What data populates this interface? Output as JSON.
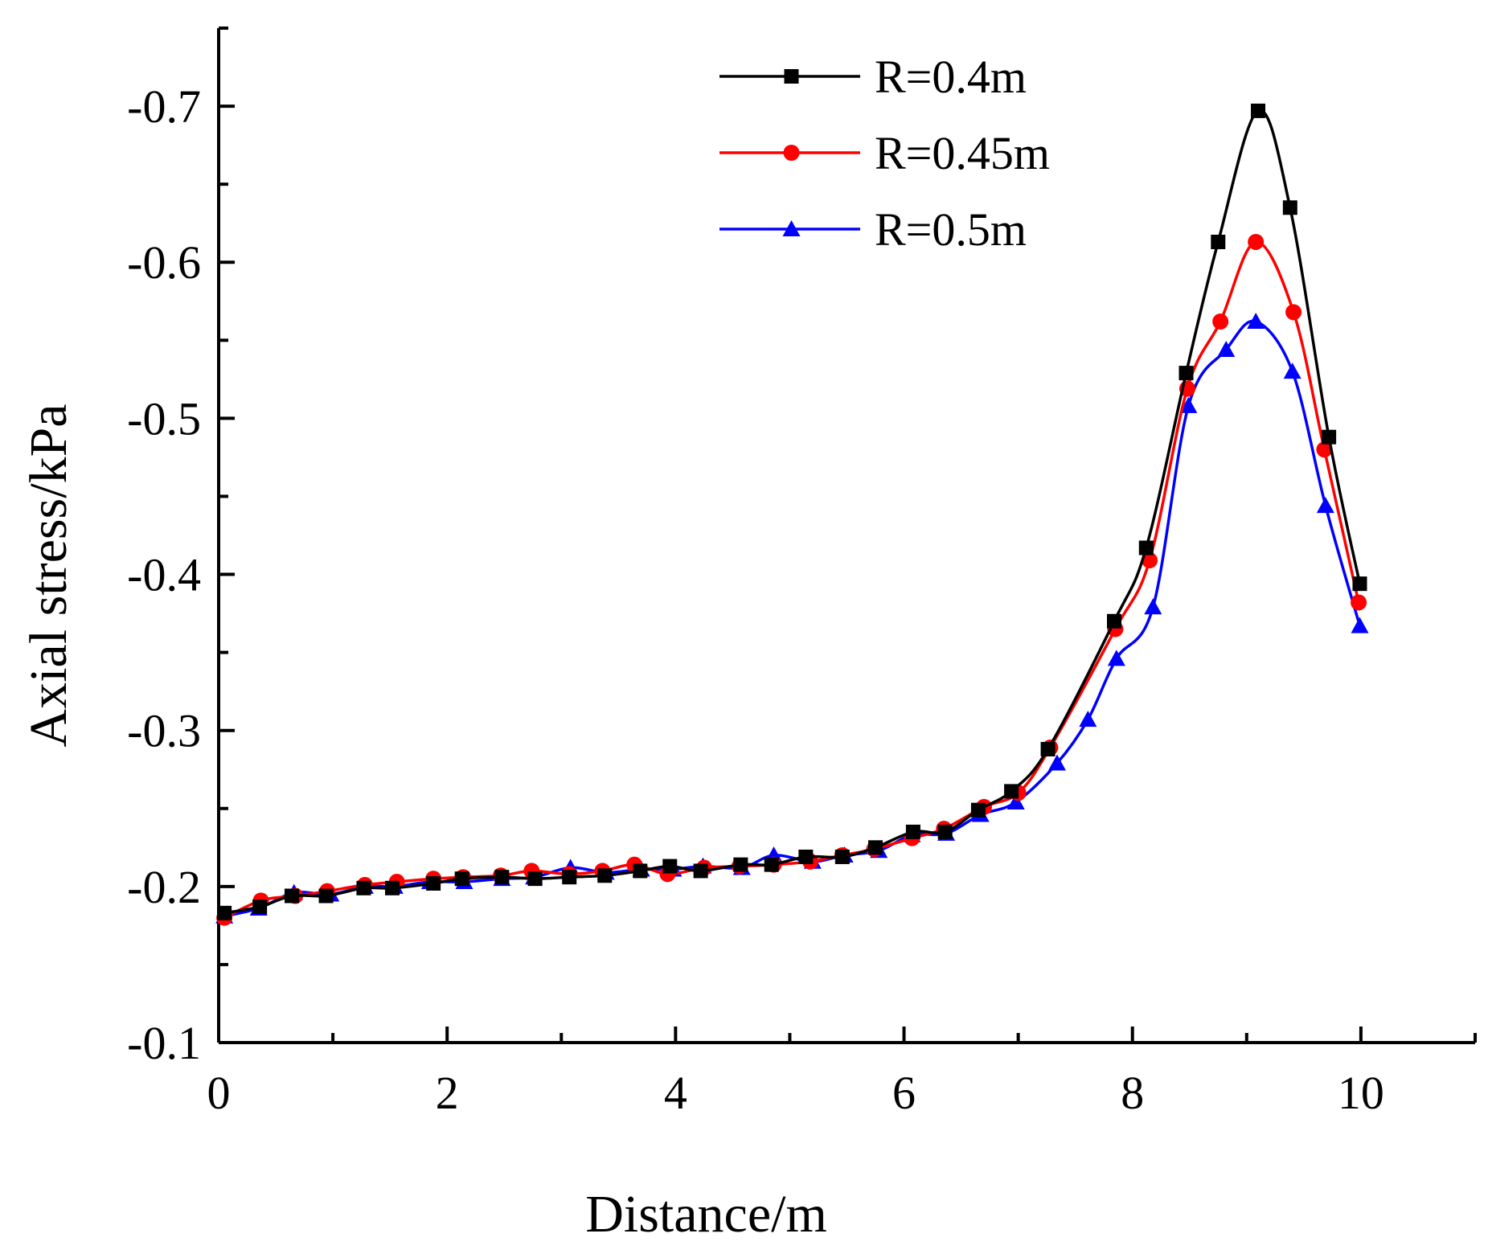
{
  "chart_data": {
    "type": "line",
    "title": "",
    "xlabel": "Distance/m",
    "ylabel": "Axial stress/kPa",
    "xlim": [
      0,
      11
    ],
    "ylim": [
      -0.1,
      -0.75
    ],
    "y_axis_inverted": true,
    "xticks": [
      0,
      2,
      4,
      6,
      8,
      10
    ],
    "xtick_labels": [
      "0",
      "2",
      "4",
      "6",
      "8",
      "10"
    ],
    "yticks": [
      -0.1,
      -0.2,
      -0.3,
      -0.4,
      -0.5,
      -0.6,
      -0.7
    ],
    "ytick_labels": [
      "-0.1",
      "-0.2",
      "-0.3",
      "-0.4",
      "-0.5",
      "-0.6",
      "-0.7"
    ],
    "grid": false,
    "legend_position": "top-center",
    "series": [
      {
        "name": "R=0.4m",
        "color": "#000000",
        "marker": "square",
        "x": [
          0.05,
          0.36,
          0.64,
          0.94,
          1.27,
          1.52,
          1.88,
          2.13,
          2.48,
          2.77,
          3.07,
          3.38,
          3.69,
          3.95,
          4.22,
          4.57,
          4.84,
          5.14,
          5.46,
          5.75,
          6.08,
          6.36,
          6.65,
          6.94,
          7.26,
          7.84,
          8.12,
          8.47,
          8.75,
          9.1,
          9.38,
          9.72,
          9.99
        ],
        "y": [
          -0.183,
          -0.187,
          -0.194,
          -0.194,
          -0.199,
          -0.199,
          -0.202,
          -0.205,
          -0.206,
          -0.205,
          -0.206,
          -0.207,
          -0.21,
          -0.213,
          -0.21,
          -0.214,
          -0.214,
          -0.219,
          -0.219,
          -0.225,
          -0.235,
          -0.235,
          -0.249,
          -0.261,
          -0.288,
          -0.37,
          -0.417,
          -0.529,
          -0.613,
          -0.697,
          -0.635,
          -0.488,
          -0.394
        ]
      },
      {
        "name": "R=0.45m",
        "color": "#ff0000",
        "marker": "circle",
        "x": [
          0.05,
          0.37,
          0.67,
          0.95,
          1.28,
          1.56,
          1.88,
          2.14,
          2.47,
          2.74,
          3.07,
          3.36,
          3.64,
          3.93,
          4.25,
          4.56,
          4.86,
          5.18,
          5.46,
          5.74,
          6.07,
          6.35,
          6.7,
          7.0,
          7.28,
          7.85,
          8.15,
          8.48,
          8.77,
          9.08,
          9.41,
          9.68,
          9.98
        ],
        "y": [
          -0.18,
          -0.191,
          -0.194,
          -0.197,
          -0.201,
          -0.203,
          -0.205,
          -0.206,
          -0.207,
          -0.21,
          -0.208,
          -0.21,
          -0.214,
          -0.208,
          -0.212,
          -0.213,
          -0.214,
          -0.216,
          -0.22,
          -0.224,
          -0.231,
          -0.237,
          -0.251,
          -0.26,
          -0.289,
          -0.365,
          -0.409,
          -0.519,
          -0.562,
          -0.613,
          -0.568,
          -0.48,
          -0.382
        ]
      },
      {
        "name": "R=0.5m",
        "color": "#0000ff",
        "marker": "triangle",
        "x": [
          0.05,
          0.35,
          0.66,
          0.98,
          1.28,
          1.54,
          1.85,
          2.15,
          2.48,
          2.76,
          3.08,
          3.39,
          3.7,
          3.98,
          4.24,
          4.58,
          4.86,
          5.2,
          5.48,
          5.78,
          6.07,
          6.37,
          6.67,
          6.98,
          7.34,
          7.61,
          7.86,
          8.18,
          8.49,
          8.82,
          9.08,
          9.4,
          9.69,
          9.99
        ],
        "y": [
          -0.181,
          -0.186,
          -0.196,
          -0.195,
          -0.2,
          -0.2,
          -0.203,
          -0.203,
          -0.205,
          -0.206,
          -0.212,
          -0.209,
          -0.211,
          -0.211,
          -0.213,
          -0.212,
          -0.22,
          -0.216,
          -0.22,
          -0.223,
          -0.233,
          -0.234,
          -0.246,
          -0.254,
          -0.279,
          -0.307,
          -0.346,
          -0.379,
          -0.508,
          -0.544,
          -0.562,
          -0.53,
          -0.444,
          -0.367
        ]
      }
    ]
  }
}
